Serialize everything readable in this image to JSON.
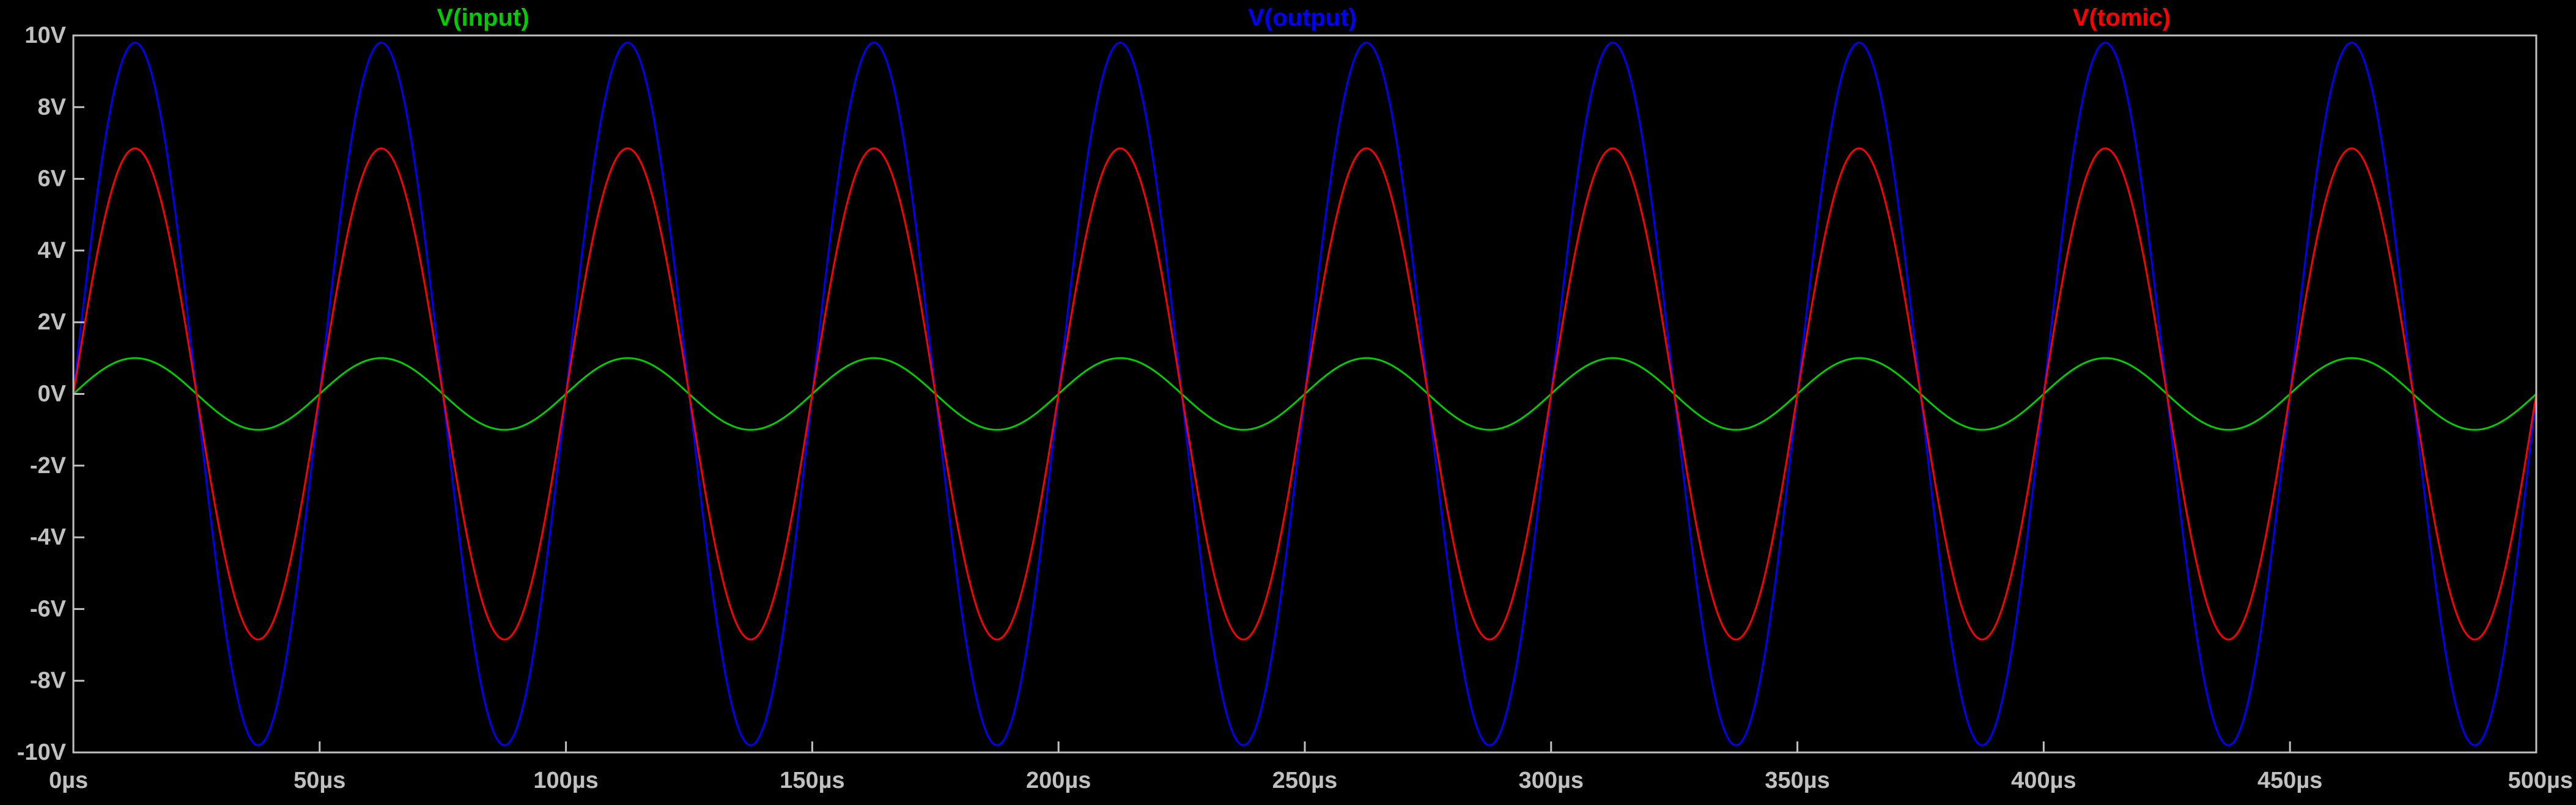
{
  "chart_data": {
    "type": "line",
    "title": "",
    "xlabel": "",
    "ylabel": "",
    "background": "#000000",
    "axis_color": "#c0c0c0",
    "grid": false,
    "legend_placement": "top",
    "xlim": [
      0,
      500
    ],
    "ylim": [
      -10,
      10
    ],
    "x_ticks": [
      {
        "value": 0,
        "label": "0µs"
      },
      {
        "value": 50,
        "label": "50µs"
      },
      {
        "value": 100,
        "label": "100µs"
      },
      {
        "value": 150,
        "label": "150µs"
      },
      {
        "value": 200,
        "label": "200µs"
      },
      {
        "value": 250,
        "label": "250µs"
      },
      {
        "value": 300,
        "label": "300µs"
      },
      {
        "value": 350,
        "label": "350µs"
      },
      {
        "value": 400,
        "label": "400µs"
      },
      {
        "value": 450,
        "label": "450µs"
      },
      {
        "value": 500,
        "label": "500µs"
      }
    ],
    "y_ticks": [
      {
        "value": 10,
        "label": "10V"
      },
      {
        "value": 8,
        "label": "8V"
      },
      {
        "value": 6,
        "label": "6V"
      },
      {
        "value": 4,
        "label": "4V"
      },
      {
        "value": 2,
        "label": "2V"
      },
      {
        "value": 0,
        "label": "0V"
      },
      {
        "value": -2,
        "label": "-2V"
      },
      {
        "value": -4,
        "label": "-4V"
      },
      {
        "value": -6,
        "label": "-6V"
      },
      {
        "value": -8,
        "label": "-8V"
      },
      {
        "value": -10,
        "label": "-10V"
      }
    ],
    "series": [
      {
        "name": "V(input)",
        "color": "#00cc00",
        "waveform": "sine",
        "amplitude": 1.0,
        "period": 50,
        "phase": 0
      },
      {
        "name": "V(output)",
        "color": "#0000ff",
        "waveform": "sine",
        "amplitude": 9.8,
        "period": 50,
        "phase": 0
      },
      {
        "name": "V(tomic)",
        "color": "#ff0000",
        "waveform": "sine",
        "amplitude": 6.85,
        "period": 50,
        "phase": 0
      }
    ]
  }
}
